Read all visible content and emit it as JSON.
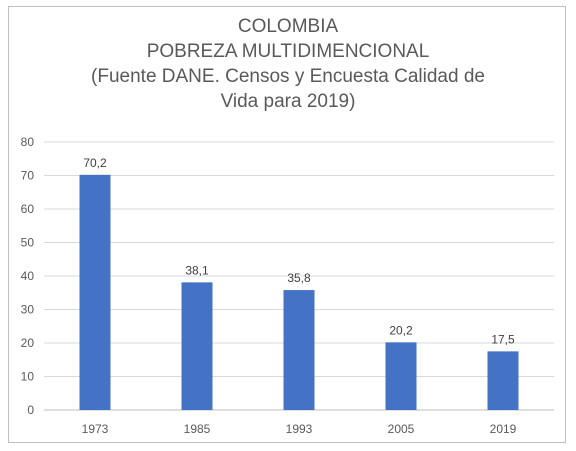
{
  "chart_data": {
    "type": "bar",
    "title_lines": [
      "COLOMBIA",
      "POBREZA MULTIDIMENCIONAL",
      "(Fuente DANE. Censos y Encuesta Calidad de",
      "Vida para 2019)"
    ],
    "categories": [
      "1973",
      "1985",
      "1993",
      "2005",
      "2019"
    ],
    "values": [
      70.2,
      38.1,
      35.8,
      20.2,
      17.5
    ],
    "data_labels": [
      "70,2",
      "38,1",
      "35,8",
      "20,2",
      "17,5"
    ],
    "y_ticks": [
      "0",
      "10",
      "20",
      "30",
      "40",
      "50",
      "60",
      "70",
      "80"
    ],
    "ylim": [
      0,
      80
    ],
    "xlabel": "",
    "ylabel": "",
    "grid": true,
    "legend": "none",
    "bar_color": "#4472c4",
    "grid_color": "#d9d9d9"
  }
}
